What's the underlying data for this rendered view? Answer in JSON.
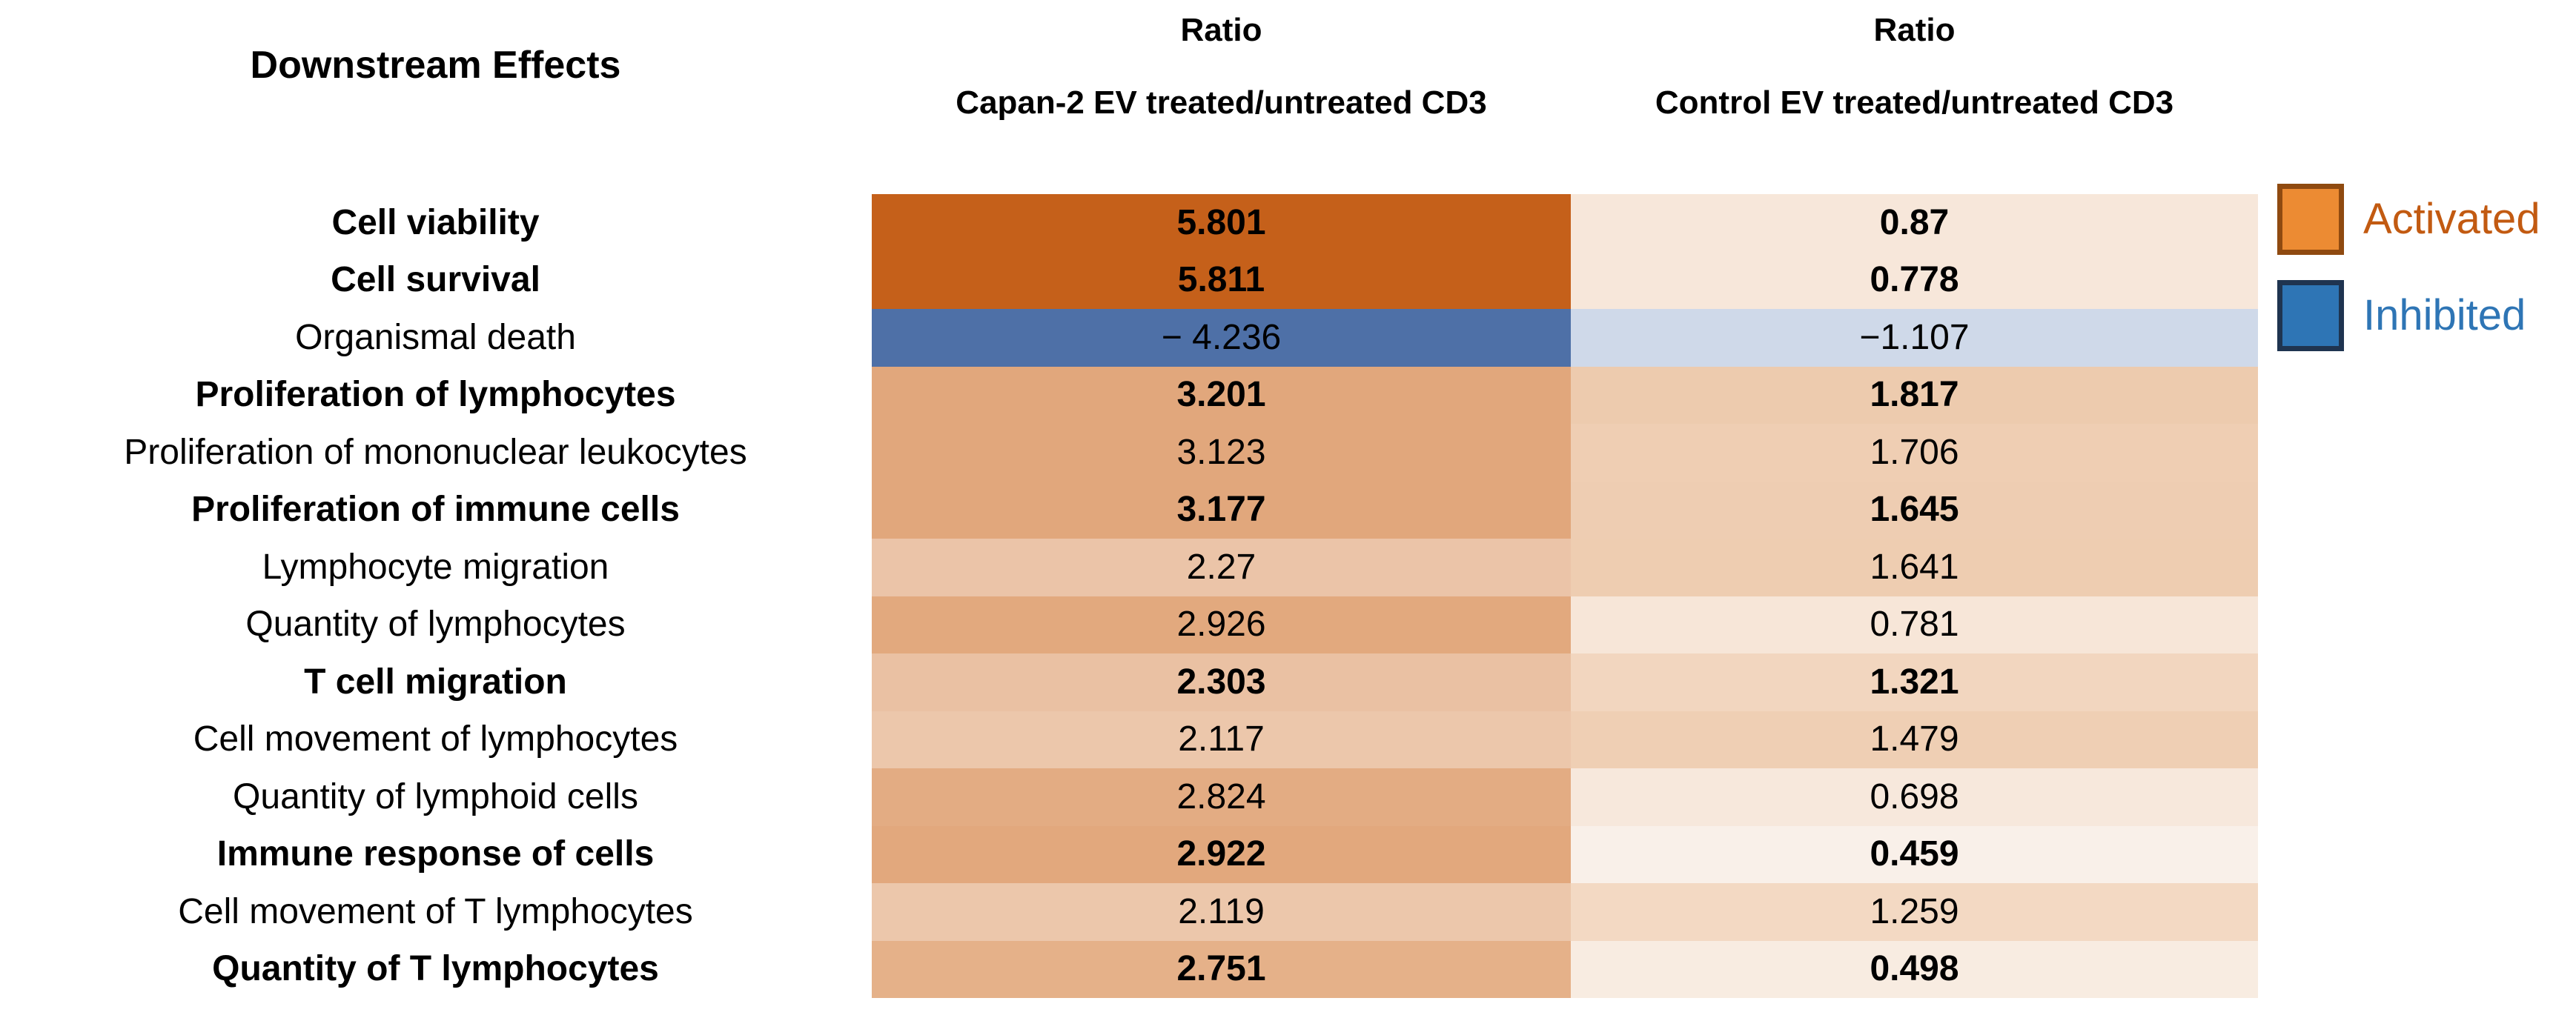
{
  "header": {
    "row_label_title": "Downstream Effects",
    "columns": [
      {
        "title": "Ratio",
        "subtitle": "Capan-2 EV treated/untreated CD3"
      },
      {
        "title": "Ratio",
        "subtitle": "Control EV treated/untreated CD3"
      }
    ]
  },
  "legend": [
    {
      "label": "Activated",
      "swatch_fill": "#EC8B33",
      "swatch_border": "#8F4A10",
      "text_color": "#C25A11"
    },
    {
      "label": "Inhibited",
      "swatch_fill": "#2E75B5",
      "swatch_border": "#1F3450",
      "text_color": "#2E75B5"
    }
  ],
  "rows": [
    {
      "label": "Cell viability",
      "bold": true,
      "capan2": {
        "text": "5.801",
        "bg": "#C5601A"
      },
      "control": {
        "text": "0.87",
        "bg": "#F7E7DA"
      }
    },
    {
      "label": "Cell survival",
      "bold": true,
      "capan2": {
        "text": "5.811",
        "bg": "#C5601A"
      },
      "control": {
        "text": "0.778",
        "bg": "#F7E7DA"
      }
    },
    {
      "label": "Organismal death",
      "bold": false,
      "capan2": {
        "text": "− 4.236",
        "bg": "#4E70A7"
      },
      "control": {
        "text": "−1.107",
        "bg": "#CFD9E9"
      }
    },
    {
      "label": "Proliferation of lymphocytes",
      "bold": true,
      "capan2": {
        "text": "3.201",
        "bg": "#E1A77C"
      },
      "control": {
        "text": "1.817",
        "bg": "#EDCBAE"
      }
    },
    {
      "label": "Proliferation of mononuclear leukocytes",
      "bold": false,
      "capan2": {
        "text": "3.123",
        "bg": "#E1A77C"
      },
      "control": {
        "text": "1.706",
        "bg": "#EFCEB3"
      }
    },
    {
      "label": "Proliferation of immune cells",
      "bold": true,
      "capan2": {
        "text": "3.177",
        "bg": "#E1A77C"
      },
      "control": {
        "text": "1.645",
        "bg": "#EECDB2"
      }
    },
    {
      "label": "Lymphocyte migration",
      "bold": false,
      "capan2": {
        "text": "2.27",
        "bg": "#EBC4A8"
      },
      "control": {
        "text": "1.641",
        "bg": "#EECDB1"
      }
    },
    {
      "label": "Quantity of lymphocytes",
      "bold": false,
      "capan2": {
        "text": "2.926",
        "bg": "#E2A97E"
      },
      "control": {
        "text": "0.781",
        "bg": "#F7E6D8"
      }
    },
    {
      "label": "T cell migration",
      "bold": true,
      "capan2": {
        "text": "2.303",
        "bg": "#EAC1A3"
      },
      "control": {
        "text": "1.321",
        "bg": "#F2D6BF"
      }
    },
    {
      "label": "Cell movement of lymphocytes",
      "bold": false,
      "capan2": {
        "text": "2.117",
        "bg": "#ECC7AB"
      },
      "control": {
        "text": "1.479",
        "bg": "#EFCFB4"
      }
    },
    {
      "label": "Quantity of lymphoid cells",
      "bold": false,
      "capan2": {
        "text": "2.824",
        "bg": "#E3AC83"
      },
      "control": {
        "text": "0.698",
        "bg": "#F7E8DC"
      }
    },
    {
      "label": "Immune response of cells",
      "bold": true,
      "capan2": {
        "text": "2.922",
        "bg": "#E2A87D"
      },
      "control": {
        "text": "0.459",
        "bg": "#F9F0E9"
      }
    },
    {
      "label": "Cell movement of T lymphocytes",
      "bold": false,
      "capan2": {
        "text": "2.119",
        "bg": "#ECC7AB"
      },
      "control": {
        "text": "1.259",
        "bg": "#F3D9C3"
      }
    },
    {
      "label": "Quantity of T lymphocytes",
      "bold": true,
      "capan2": {
        "text": "2.751",
        "bg": "#E5B189"
      },
      "control": {
        "text": "0.498",
        "bg": "#F8ECE1"
      }
    }
  ],
  "chart_data": {
    "type": "heatmap",
    "title": "Downstream Effects",
    "columns": [
      "Ratio: Capan-2 EV treated/untreated CD3",
      "Ratio: Control EV treated/untreated CD3"
    ],
    "categories": [
      "Cell viability",
      "Cell survival",
      "Organismal death",
      "Proliferation of lymphocytes",
      "Proliferation of mononuclear leukocytes",
      "Proliferation of immune cells",
      "Lymphocyte migration",
      "Quantity of lymphocytes",
      "T cell migration",
      "Cell movement of lymphocytes",
      "Quantity of lymphoid cells",
      "Immune response of cells",
      "Cell movement of T lymphocytes",
      "Quantity of T lymphocytes"
    ],
    "series": [
      {
        "name": "Capan-2 EV treated/untreated CD3",
        "values": [
          5.801,
          5.811,
          -4.236,
          3.201,
          3.123,
          3.177,
          2.27,
          2.926,
          2.303,
          2.117,
          2.824,
          2.922,
          2.119,
          2.751
        ]
      },
      {
        "name": "Control EV treated/untreated CD3",
        "values": [
          0.87,
          0.778,
          -1.107,
          1.817,
          1.706,
          1.645,
          1.641,
          0.781,
          1.321,
          1.479,
          0.698,
          0.459,
          1.259,
          0.498
        ]
      }
    ],
    "legend_entries": [
      "Activated",
      "Inhibited"
    ],
    "legend_position": "right",
    "color_scale": {
      "positive_activated": "#C5601A",
      "negative_inhibited": "#4E70A7",
      "note": "darker orange = stronger activation, blue = inhibition"
    }
  }
}
